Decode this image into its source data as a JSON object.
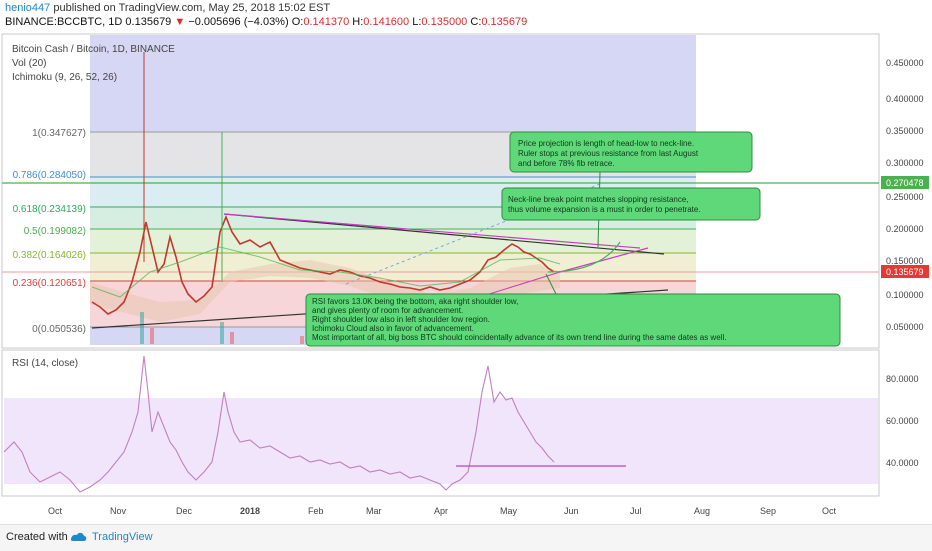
{
  "header": {
    "author": "henio447",
    "published_text": "published on TradingView.com, May 25, 2018 15:02 EST",
    "symbol": "BINANCE:BCCBTC, 1D",
    "last": "0.135679",
    "change": "−0.005696 (−4.03%)",
    "ohlc": {
      "o_label": "O:",
      "o": "0.141370",
      "h_label": "H:",
      "h": "0.141600",
      "l_label": "L:",
      "l": "0.135000",
      "c_label": "C:",
      "c": "0.135679"
    }
  },
  "legend": {
    "title": "Bitcoin Cash / Bitcoin, 1D, BINANCE",
    "vol": "Vol (20)",
    "ichimoku": "Ichimoku (9, 26, 52, 26)",
    "rsi": "RSI (14, close)"
  },
  "fib_levels": [
    {
      "label": "1(0.347627)",
      "value": 0.347627,
      "color": "#888888",
      "fill": "#e0e0e0"
    },
    {
      "label": "0.786(0.284050)",
      "value": 0.28405,
      "color": "#3f8ed8",
      "fill": "#dbeef0"
    },
    {
      "label": "0.618(0.234139)",
      "value": 0.234139,
      "color": "#2eaa5c",
      "fill": "#d8f0e0"
    },
    {
      "label": "0.5(0.199082)",
      "value": 0.199082,
      "color": "#4caf50",
      "fill": "#e2f3d8"
    },
    {
      "label": "0.382(0.164026)",
      "value": 0.164026,
      "color": "#8bb52a",
      "fill": "#f0f0d0"
    },
    {
      "label": "0.236(0.120651)",
      "value": 0.120651,
      "color": "#d84040",
      "fill": "#f8d8d8"
    },
    {
      "label": "0(0.050536)",
      "value": 0.050536,
      "color": "#888888",
      "fill": null
    }
  ],
  "price_axis": {
    "ticks": [
      "0.450000",
      "0.400000",
      "0.350000",
      "0.300000",
      "0.250000",
      "0.200000",
      "0.150000",
      "0.100000",
      "0.050000"
    ],
    "highlight_green": "0.270478",
    "highlight_red": "0.135679"
  },
  "rsi_axis": {
    "ticks": [
      "80.0000",
      "60.0000",
      "40.0000"
    ]
  },
  "time_axis": {
    "ticks": [
      "Oct",
      "Nov",
      "Dec",
      "2018",
      "Feb",
      "Mar",
      "Apr",
      "May",
      "Jun",
      "Jul",
      "Aug",
      "Sep",
      "Oct"
    ]
  },
  "annotations": {
    "note1": [
      "Price projection is length of head-low to neck-line.",
      "Ruler stops at previous resistance from last August",
      "and before 78% fib retrace."
    ],
    "note2": [
      "Neck-line break point matches slopping resistance,",
      "thus volume expansion is a must in order to penetrate."
    ],
    "note3": [
      "RSI favors 13.0K being the bottom, aka right shoulder low,",
      "and gives plenty of room for advancement.",
      "Right shoulder low also in left shoulder low region.",
      "Ichimoku Cloud also in favor of advancement.",
      "Most important of all, big boss BTC should coincidentally advance of its own trend line during the same dates as well."
    ]
  },
  "colors": {
    "green_line": "#4caf50",
    "red_line": "#e53935",
    "purple_zone": "#c5c5f0",
    "rsi_band": "#ede0fa",
    "rsi_line": "#c080c0",
    "note_fill": "#5fd87a",
    "note_border": "#2e8b3c"
  },
  "footer": {
    "created": "Created with",
    "brand": "TradingView"
  }
}
